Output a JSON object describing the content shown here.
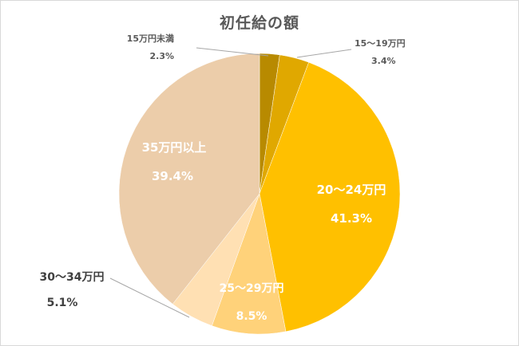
{
  "chart_data": {
    "type": "pie",
    "title": "初任給の額",
    "slices": [
      {
        "label": "15万円未満",
        "value": 2.3,
        "value_label": "2.3%",
        "color": "#b88a00",
        "label_color": "#595959",
        "label_pos": "outside",
        "label_weight": "bold"
      },
      {
        "label": "15～19万円",
        "value": 3.4,
        "value_label": "3.4%",
        "color": "#e0a800",
        "label_color": "#595959",
        "label_pos": "outside",
        "label_weight": "bold"
      },
      {
        "label": "20～24万円",
        "value": 41.3,
        "value_label": "41.3%",
        "color": "#ffc000",
        "label_color": "#ffffff",
        "label_pos": "inside",
        "label_weight": "bold"
      },
      {
        "label": "25～29万円",
        "value": 8.5,
        "value_label": "8.5%",
        "color": "#ffd27a",
        "label_color": "#ffffff",
        "label_pos": "inside",
        "label_weight": "bold"
      },
      {
        "label": "30～34万円",
        "value": 5.1,
        "value_label": "5.1%",
        "color": "#ffe0b3",
        "label_color": "#404040",
        "label_pos": "outside",
        "label_weight": "bold"
      },
      {
        "label": "35万円以上",
        "value": 39.4,
        "value_label": "39.4%",
        "color": "#eccdaa",
        "label_color": "#ffffff",
        "label_pos": "inside",
        "label_weight": "bold"
      }
    ]
  }
}
